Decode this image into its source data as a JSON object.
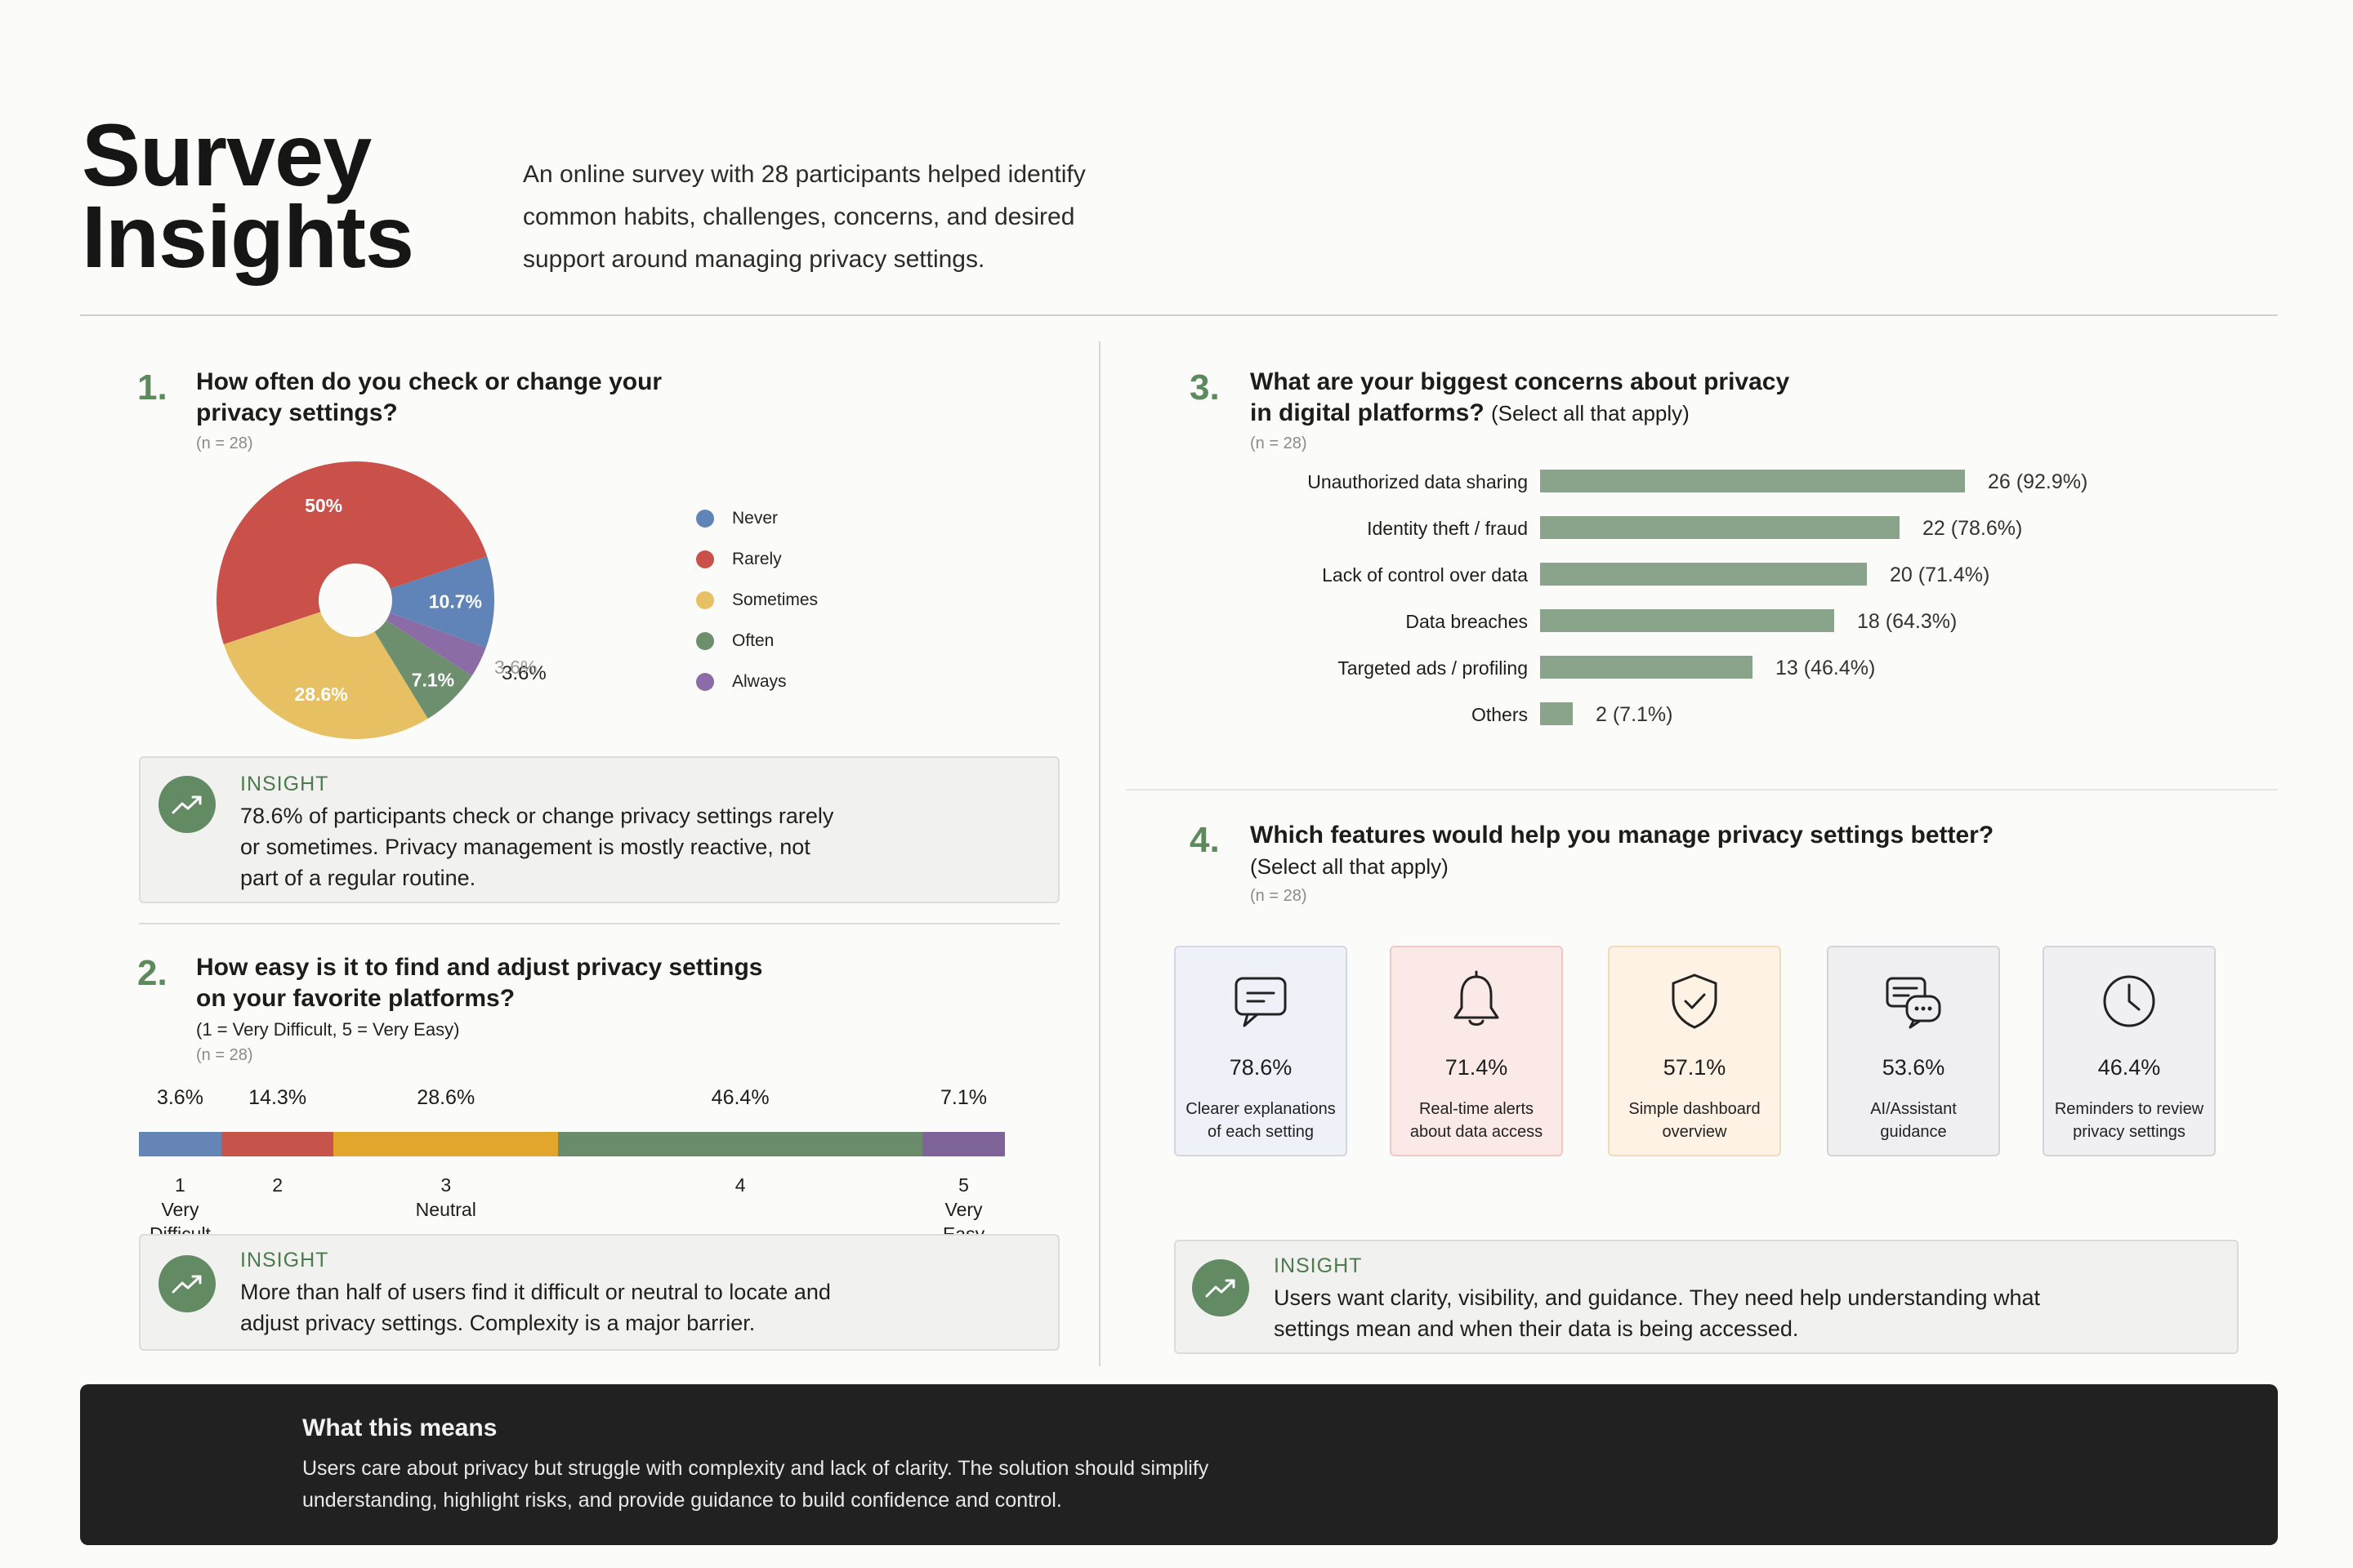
{
  "header": {
    "title_line1": "Survey",
    "title_line2": "Insights",
    "intro_line1": "An online survey with 28 participants helped identify",
    "intro_line2": "common habits, challenges, concerns, and desired",
    "intro_line3": "support around managing privacy settings."
  },
  "q1": {
    "number": "1.",
    "title_line1": "How often do you check or change your",
    "title_line2": "privacy settings?",
    "n": "(n = 28)",
    "insight_label": "INSIGHT",
    "insight_line1": "78.6% of participants check or change privacy settings rarely",
    "insight_line2": "or sometimes. Privacy management is mostly reactive, not",
    "insight_line3": "part of a regular routine."
  },
  "q2": {
    "number": "2.",
    "title_line1": "How easy is it to find and adjust privacy settings",
    "title_line2": "on your favorite platforms?",
    "scale_note": "(1 = Very Difficult, 5 = Very Easy)",
    "n": "(n = 28)",
    "insight_label": "INSIGHT",
    "insight_line1": "More than half of users find it difficult or neutral to locate and",
    "insight_line2": "adjust privacy settings. Complexity is a major barrier."
  },
  "q3": {
    "number": "3.",
    "title_line1": "What are your biggest concerns about privacy",
    "title_line2": "in digital platforms?",
    "title_suffix": "(Select all that apply)",
    "n": "(n = 28)"
  },
  "q4": {
    "number": "4.",
    "title_line1": "Which features would help you manage privacy settings better?",
    "subtitle": "(Select all that apply)",
    "n": "(n = 28)",
    "insight_label": "INSIGHT",
    "insight_line1": "Users want clarity, visibility, and guidance. They need help understanding what",
    "insight_line2": "settings mean and when their data is being accessed.",
    "cards": [
      {
        "icon": "chat-icon",
        "pct": "78.6%",
        "line1": "Clearer explanations",
        "line2": "of each setting",
        "bg": "#eef1f8",
        "border": "#d2d7e2"
      },
      {
        "icon": "bell-icon",
        "pct": "71.4%",
        "line1": "Real-time alerts",
        "line2": "about data access",
        "bg": "#fbe9e7",
        "border": "#ecc9c4"
      },
      {
        "icon": "shield-check-icon",
        "pct": "57.1%",
        "line1": "Simple dashboard",
        "line2": "overview",
        "bg": "#fdf2e3",
        "border": "#efdcbc"
      },
      {
        "icon": "assistant-chat-icon",
        "pct": "53.6%",
        "line1": "AI/Assistant",
        "line2": "guidance",
        "bg": "#efeff2",
        "border": "#d4d4d8"
      },
      {
        "icon": "clock-icon",
        "pct": "46.4%",
        "line1": "Reminders to review",
        "line2": "privacy settings",
        "bg": "#f0f0f3",
        "border": "#d4d4d8"
      }
    ]
  },
  "footer": {
    "title": "What this means",
    "line1": "Users care about privacy but struggle with complexity and lack of clarity. The solution should simplify",
    "line2": "understanding, highlight risks, and provide guidance to build confidence and control."
  },
  "chart_data": [
    {
      "type": "pie",
      "title": "How often do you check or change your privacy settings?",
      "categories": [
        "Never",
        "Rarely",
        "Sometimes",
        "Often",
        "Always"
      ],
      "values": [
        10.7,
        50,
        28.6,
        7.1,
        3.6
      ],
      "slice_labels": [
        "10.7%",
        "50%",
        "28.6%",
        "7.1%",
        "3.6%"
      ],
      "extra_label": "3.6%",
      "colors": [
        "#6083b8",
        "#c9514a",
        "#e6c062",
        "#6e8f6e",
        "#8c6ca6"
      ],
      "legend_placement": "right",
      "donut_hole": true
    },
    {
      "type": "bar",
      "orientation": "stacked-horizontal",
      "title": "How easy is it to find and adjust privacy settings on your favorite platforms?",
      "categories": [
        "1",
        "2",
        "3",
        "4",
        "5"
      ],
      "category_sublabels": [
        "Very Difficult",
        "",
        "Neutral",
        "",
        "Very Easy"
      ],
      "values": [
        3.6,
        14.3,
        28.6,
        46.4,
        7.1
      ],
      "value_labels": [
        "3.6%",
        "14.3%",
        "28.6%",
        "46.4%",
        "7.1%"
      ],
      "colors": [
        "#6485b6",
        "#c6544b",
        "#e3a62c",
        "#6a8c6a",
        "#7f6499"
      ]
    },
    {
      "type": "bar",
      "orientation": "horizontal",
      "title": "What are your biggest concerns about privacy in digital platforms?",
      "categories": [
        "Unauthorized data sharing",
        "Identity theft / fraud",
        "Lack of control over data",
        "Data breaches",
        "Targeted ads / profiling",
        "Others"
      ],
      "values": [
        26,
        22,
        20,
        18,
        13,
        2
      ],
      "value_labels": [
        "26 (92.9%)",
        "22 (78.6%)",
        "20 (71.4%)",
        "18 (64.3%)",
        "13 (46.4%)",
        "2 (7.1%)"
      ],
      "bar_color": "#8aa38b",
      "xlim": [
        0,
        28
      ]
    }
  ]
}
